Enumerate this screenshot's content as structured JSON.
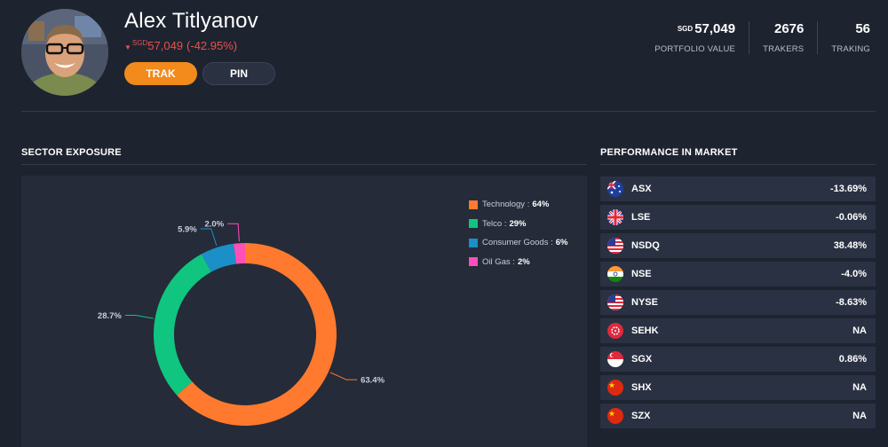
{
  "profile": {
    "name": "Alex Titlyanov",
    "change_currency": "SGD",
    "change_value": "57,049",
    "change_pct": "(-42.95%)",
    "trak_label": "TRAK",
    "pin_label": "PIN"
  },
  "stats": [
    {
      "currency": "SGD",
      "value": "57,049",
      "label": "PORTFOLIO VALUE"
    },
    {
      "currency": "",
      "value": "2676",
      "label": "TRAKERS"
    },
    {
      "currency": "",
      "value": "56",
      "label": "TRAKING"
    }
  ],
  "sector": {
    "title": "SECTOR EXPOSURE",
    "legend": [
      {
        "name": "Technology :",
        "pct": "64%",
        "color": "#ff7a2e"
      },
      {
        "name": "Telco :",
        "pct": "29%",
        "color": "#10c57f"
      },
      {
        "name": "Consumer Goods :",
        "pct": "6%",
        "color": "#1b8fc7"
      },
      {
        "name": "Oil Gas :",
        "pct": "2%",
        "color": "#ff4fb8"
      }
    ]
  },
  "chart_data": {
    "type": "pie",
    "categories": [
      "Technology",
      "Telco",
      "Consumer Goods",
      "Oil Gas"
    ],
    "values": [
      63.4,
      28.7,
      5.9,
      2.0
    ],
    "data_labels": [
      "63.4%",
      "28.7%",
      "5.9%",
      "2.0%"
    ],
    "colors": [
      "#ff7a2e",
      "#10c57f",
      "#1b8fc7",
      "#ff4fb8"
    ]
  },
  "performance": {
    "title": "PERFORMANCE IN MARKET",
    "markets": [
      {
        "name": "ASX",
        "value": "-13.69%",
        "flag": "au-flag-icon"
      },
      {
        "name": "LSE",
        "value": "-0.06%",
        "flag": "uk-flag-icon"
      },
      {
        "name": "NSDQ",
        "value": "38.48%",
        "flag": "us-flag-icon"
      },
      {
        "name": "NSE",
        "value": "-4.0%",
        "flag": "in-flag-icon"
      },
      {
        "name": "NYSE",
        "value": "-8.63%",
        "flag": "us-flag-icon"
      },
      {
        "name": "SEHK",
        "value": "NA",
        "flag": "hk-flag-icon"
      },
      {
        "name": "SGX",
        "value": "0.86%",
        "flag": "sg-flag-icon"
      },
      {
        "name": "SHX",
        "value": "NA",
        "flag": "cn-flag-icon"
      },
      {
        "name": "SZX",
        "value": "NA",
        "flag": "cn-flag-icon"
      }
    ]
  }
}
